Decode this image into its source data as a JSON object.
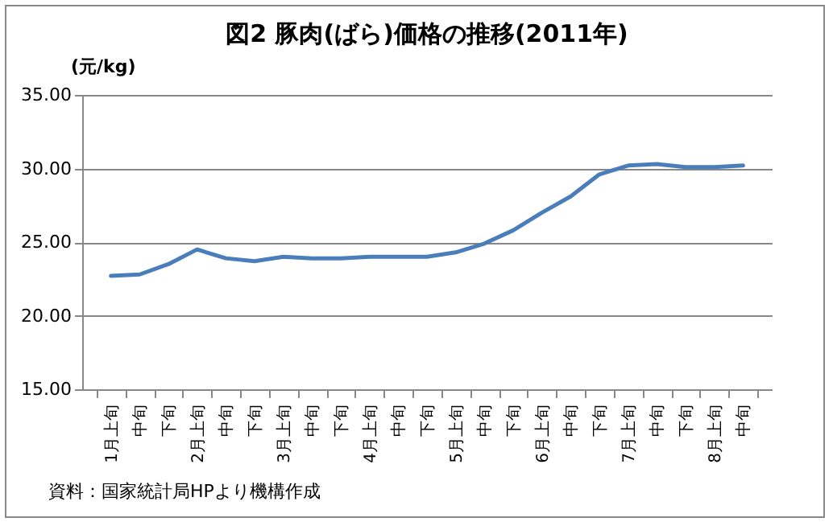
{
  "chart_data": {
    "type": "line",
    "title": "図2 豚肉(ばら)価格の推移(2011年)",
    "ylabel": "(元/kg)",
    "categories": [
      "1月上旬",
      "中旬",
      "下旬",
      "2月上旬",
      "中旬",
      "下旬",
      "3月上旬",
      "中旬",
      "下旬",
      "4月上旬",
      "中旬",
      "下旬",
      "5月上旬",
      "中旬",
      "下旬",
      "6月上旬",
      "中旬",
      "下旬",
      "7月上旬",
      "中旬",
      "下旬",
      "8月上旬",
      "中旬"
    ],
    "series": [
      {
        "color": "#4a7ebb",
        "values": [
          22.7,
          22.8,
          23.5,
          24.5,
          23.9,
          23.7,
          24.0,
          23.9,
          23.9,
          24.0,
          24.0,
          24.0,
          24.3,
          24.9,
          25.8,
          27.0,
          28.1,
          29.6,
          30.2,
          30.3,
          30.1,
          30.1,
          30.2
        ]
      }
    ],
    "ylim": [
      15,
      35
    ],
    "yticks": [
      {
        "value": 15,
        "label": "15.00"
      },
      {
        "value": 20,
        "label": "20.00"
      },
      {
        "value": 25,
        "label": "25.00"
      },
      {
        "value": 30,
        "label": "30.00"
      },
      {
        "value": 35,
        "label": "35.00"
      }
    ],
    "grid": "y",
    "legend": false,
    "marker": "none",
    "line_style": "solid",
    "annotations": [
      "資料：国家統計局HPより機構作成"
    ]
  }
}
